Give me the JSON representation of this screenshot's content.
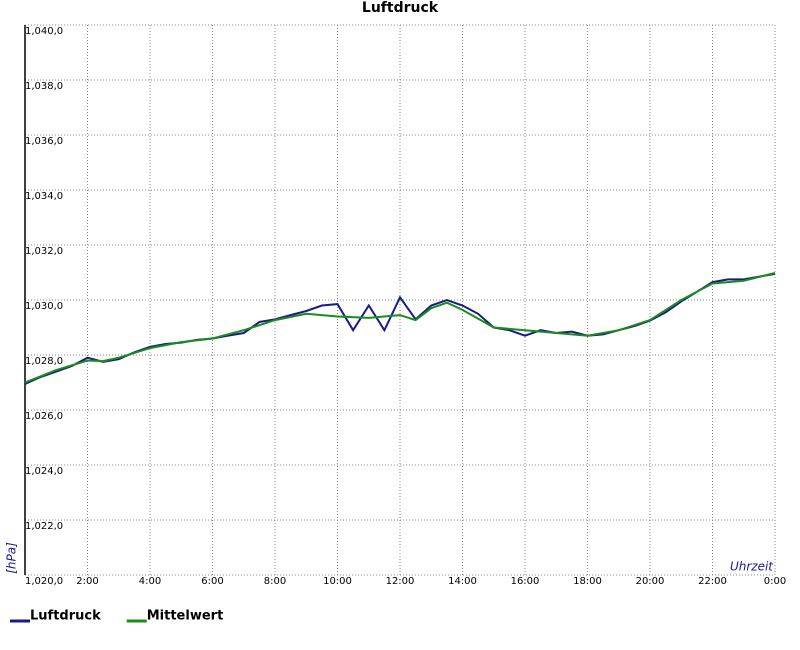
{
  "chart_data": {
    "type": "line",
    "title": "Luftdruck",
    "y_label": "[hPa]",
    "x_label": "Uhrzeit",
    "xlim": [
      0,
      24
    ],
    "xticks": [
      {
        "value": 2,
        "label": "2:00"
      },
      {
        "value": 4,
        "label": "4:00"
      },
      {
        "value": 6,
        "label": "6:00"
      },
      {
        "value": 8,
        "label": "8:00"
      },
      {
        "value": 10,
        "label": "10:00"
      },
      {
        "value": 12,
        "label": "12:00"
      },
      {
        "value": 14,
        "label": "14:00"
      },
      {
        "value": 16,
        "label": "16:00"
      },
      {
        "value": 18,
        "label": "18:00"
      },
      {
        "value": 20,
        "label": "20:00"
      },
      {
        "value": 22,
        "label": "22:00"
      },
      {
        "value": 24,
        "label": "0:00"
      }
    ],
    "ylim": [
      1020,
      1040
    ],
    "yticks": [
      {
        "value": 1020,
        "label": "1,020,0"
      },
      {
        "value": 1022,
        "label": "1,022,0"
      },
      {
        "value": 1024,
        "label": "1,024,0"
      },
      {
        "value": 1026,
        "label": "1,026,0"
      },
      {
        "value": 1028,
        "label": "1,028,0"
      },
      {
        "value": 1030,
        "label": "1,030,0"
      },
      {
        "value": 1032,
        "label": "1,032,0"
      },
      {
        "value": 1034,
        "label": "1,034,0"
      },
      {
        "value": 1036,
        "label": "1,036,0"
      },
      {
        "value": 1038,
        "label": "1,038,0"
      },
      {
        "value": 1040,
        "label": "1,040,0"
      }
    ],
    "grid": true,
    "series": [
      {
        "name": "Luftdruck",
        "color": "#1a1a8c",
        "x": [
          0,
          0.5,
          1,
          1.5,
          2,
          2.5,
          3,
          3.5,
          4,
          4.5,
          5,
          5.5,
          6,
          6.5,
          7,
          7.5,
          8,
          8.5,
          9,
          9.5,
          10,
          10.5,
          11,
          11.5,
          12,
          12.5,
          13,
          13.5,
          14,
          14.5,
          15,
          15.5,
          16,
          16.5,
          17,
          17.5,
          18,
          18.5,
          19,
          19.5,
          20,
          20.5,
          21,
          21.5,
          22,
          22.5,
          23,
          23.5,
          24
        ],
        "values": [
          1026.95,
          1027.2,
          1027.4,
          1027.6,
          1027.9,
          1027.75,
          1027.85,
          1028.1,
          1028.3,
          1028.4,
          1028.45,
          1028.55,
          1028.6,
          1028.7,
          1028.8,
          1029.2,
          1029.3,
          1029.45,
          1029.6,
          1029.8,
          1029.85,
          1028.9,
          1029.8,
          1028.9,
          1030.1,
          1029.3,
          1029.8,
          1030.0,
          1029.8,
          1029.5,
          1029.0,
          1028.9,
          1028.7,
          1028.9,
          1028.8,
          1028.85,
          1028.7,
          1028.75,
          1028.9,
          1029.05,
          1029.25,
          1029.55,
          1029.95,
          1030.3,
          1030.65,
          1030.75,
          1030.75,
          1030.85,
          1030.95
        ]
      },
      {
        "name": "Mittelwert",
        "color": "#1a8c1a",
        "x": [
          0,
          1,
          2,
          2.5,
          3,
          4,
          5,
          6,
          7,
          8,
          9,
          10,
          11,
          12,
          12.5,
          13,
          13.5,
          14,
          15,
          16,
          17,
          18,
          19,
          20,
          21,
          22,
          23,
          24
        ],
        "values": [
          1027.0,
          1027.45,
          1027.8,
          1027.78,
          1027.9,
          1028.25,
          1028.47,
          1028.6,
          1028.9,
          1029.27,
          1029.5,
          1029.4,
          1029.35,
          1029.45,
          1029.27,
          1029.7,
          1029.9,
          1029.64,
          1029.0,
          1028.9,
          1028.8,
          1028.7,
          1028.9,
          1029.27,
          1030.0,
          1030.6,
          1030.7,
          1030.98
        ]
      }
    ]
  }
}
